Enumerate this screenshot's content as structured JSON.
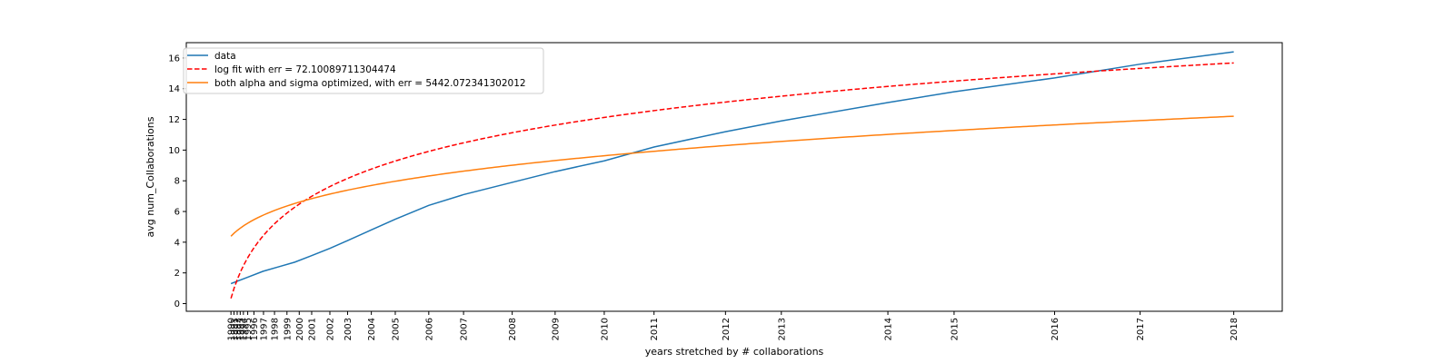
{
  "chart_data": {
    "type": "line",
    "xlabel": "years stretched by # collaborations",
    "ylabel": "avg num_Collaborations",
    "x_ticks": [
      {
        "label": "1990",
        "x": 1.0
      },
      {
        "label": "1991",
        "x": 1.19
      },
      {
        "label": "1992",
        "x": 1.39
      },
      {
        "label": "1993",
        "x": 1.58
      },
      {
        "label": "1994",
        "x": 1.78
      },
      {
        "label": "1995",
        "x": 2.05
      },
      {
        "label": "1996",
        "x": 2.44
      },
      {
        "label": "1997",
        "x": 3.04
      },
      {
        "label": "1998",
        "x": 3.73
      },
      {
        "label": "1999",
        "x": 4.51
      },
      {
        "label": "2000",
        "x": 5.28
      },
      {
        "label": "2001",
        "x": 6.06
      },
      {
        "label": "2002",
        "x": 7.2
      },
      {
        "label": "2003",
        "x": 8.31
      },
      {
        "label": "2004",
        "x": 9.8
      },
      {
        "label": "2005",
        "x": 11.3
      },
      {
        "label": "2006",
        "x": 13.4
      },
      {
        "label": "2007",
        "x": 15.58
      },
      {
        "label": "2008",
        "x": 18.63
      },
      {
        "label": "2009",
        "x": 21.32
      },
      {
        "label": "2010",
        "x": 24.4
      },
      {
        "label": "2011",
        "x": 27.52
      },
      {
        "label": "2012",
        "x": 32.0
      },
      {
        "label": "2013",
        "x": 35.5
      },
      {
        "label": "2014",
        "x": 42.18
      },
      {
        "label": "2015",
        "x": 46.33
      },
      {
        "label": "2016",
        "x": 52.63
      },
      {
        "label": "2017",
        "x": 57.99
      },
      {
        "label": "2018",
        "x": 63.86
      }
    ],
    "xlim": [
      -1.8,
      66.9
    ],
    "ylim": [
      -0.5,
      17.0
    ],
    "y_ticks": [
      0,
      2,
      4,
      6,
      8,
      10,
      12,
      14,
      16
    ],
    "legend_position": "top-left",
    "series": [
      {
        "name": "data",
        "color": "#1f77b4",
        "dash": "solid",
        "points": [
          [
            1.0,
            1.3
          ],
          [
            2.0,
            1.7
          ],
          [
            3.0,
            2.1
          ],
          [
            4.0,
            2.4
          ],
          [
            5.0,
            2.7
          ],
          [
            6.0,
            3.1
          ],
          [
            7.2,
            3.6
          ],
          [
            8.3,
            4.1
          ],
          [
            9.8,
            4.8
          ],
          [
            11.3,
            5.5
          ],
          [
            13.4,
            6.4
          ],
          [
            15.58,
            7.1
          ],
          [
            18.63,
            7.9
          ],
          [
            21.32,
            8.6
          ],
          [
            24.4,
            9.3
          ],
          [
            27.52,
            10.2
          ],
          [
            32.0,
            11.2
          ],
          [
            35.5,
            11.9
          ],
          [
            42.18,
            13.1
          ],
          [
            46.33,
            13.8
          ],
          [
            52.63,
            14.7
          ],
          [
            57.99,
            15.6
          ],
          [
            63.86,
            16.4
          ]
        ]
      },
      {
        "name": "log fit with err = 72.10089711304474",
        "color": "#ff0000",
        "dash": "dashed",
        "fn": "log",
        "a": 0.34,
        "b": 3.69
      },
      {
        "name": "both alpha and sigma optimized, with err = 5442.072341302012",
        "color": "#ff7f0e",
        "dash": "solid",
        "fn": "power",
        "a": 4.39,
        "p": 0.246
      }
    ]
  }
}
